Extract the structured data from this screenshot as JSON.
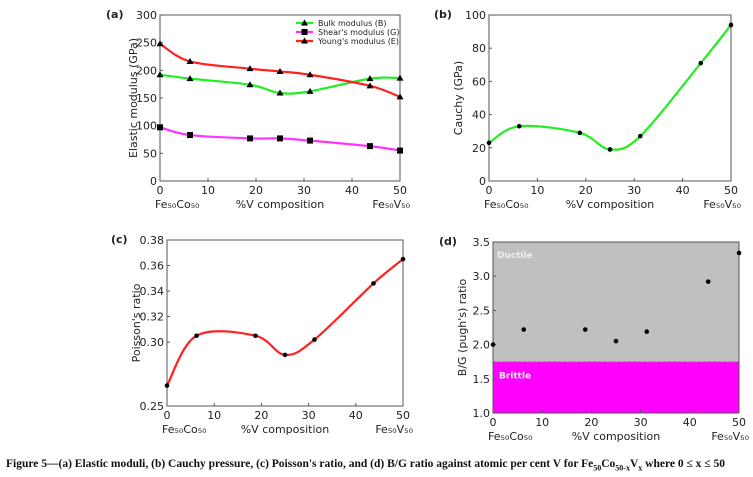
{
  "caption": {
    "text": "Figure 5—(a) Elastic moduli, (b) Cauchy pressure, (c) Poisson's ratio, and (d) B/G ratio against atomic per cent V for Fe",
    "sub1": "50",
    "co": "Co",
    "sub2": "50-x",
    "v": "V",
    "sub3": "x",
    "tail": " where 0 ≤ x ≤ 50"
  },
  "chart_data": [
    {
      "id": "a",
      "panel_label": "(a)",
      "type": "line",
      "xlabel": "%V composition",
      "ylabel": "Elastic modulus (GPa)",
      "x_end_labels": [
        "Fe₅₀Co₅₀",
        "Fe₅₀V₅₀"
      ],
      "xlim": [
        0,
        50
      ],
      "ylim": [
        0,
        300
      ],
      "xticks": [
        0,
        10,
        20,
        30,
        40,
        50
      ],
      "yticks": [
        0,
        50,
        100,
        150,
        200,
        250,
        300
      ],
      "grid": false,
      "legend": "top-right",
      "x": [
        0,
        6.25,
        18.75,
        25,
        31.25,
        43.75,
        50
      ],
      "series": [
        {
          "name": "Bulk modulus (B)",
          "color": "#22ee22",
          "marker": "triangle",
          "values": [
            192,
            185,
            174,
            159,
            162,
            185,
            186
          ]
        },
        {
          "name": "Shear's modulus (G)",
          "color": "#ff33ff",
          "marker": "square",
          "values": [
            97,
            83,
            77,
            77,
            73,
            63,
            55
          ]
        },
        {
          "name": "Young's modulus (E)",
          "color": "#ff2020",
          "marker": "triangle",
          "values": [
            248,
            216,
            203,
            198,
            192,
            172,
            152
          ]
        }
      ]
    },
    {
      "id": "b",
      "panel_label": "(b)",
      "type": "line",
      "xlabel": "%V composition",
      "ylabel": "Cauchy (GPa)",
      "x_end_labels": [
        "Fe₅₀Co₅₀",
        "Fe₅₀V₅₀"
      ],
      "xlim": [
        0,
        50
      ],
      "ylim": [
        0,
        100
      ],
      "xticks": [
        0,
        10,
        20,
        30,
        40,
        50
      ],
      "yticks": [
        0,
        20,
        40,
        60,
        80,
        100
      ],
      "grid": false,
      "x": [
        0,
        6.25,
        18.75,
        25,
        31.25,
        43.75,
        50
      ],
      "series": [
        {
          "color": "#22ee22",
          "marker": "dot",
          "values": [
            23,
            33,
            29,
            19,
            27,
            71,
            94
          ]
        }
      ]
    },
    {
      "id": "c",
      "panel_label": "(c)",
      "type": "line",
      "xlabel": "%V composition",
      "ylabel": "Poisson's ratio",
      "x_end_labels": [
        "Fe₅₀Co₅₀",
        "Fe₅₀V₅₀"
      ],
      "xlim": [
        0,
        50
      ],
      "ylim": [
        0.25,
        0.38
      ],
      "xticks": [
        0,
        10,
        20,
        30,
        40,
        50
      ],
      "yticks": [
        0.25,
        0.3,
        0.32,
        0.34,
        0.36,
        0.38
      ],
      "ytick_labels": [
        "0.25",
        "0.30",
        "0.32",
        "0.34",
        "0.36",
        "0.38"
      ],
      "grid": false,
      "x": [
        0,
        6.25,
        18.75,
        25,
        31.25,
        43.75,
        50
      ],
      "series": [
        {
          "color": "#ff2020",
          "marker": "dot",
          "values": [
            0.266,
            0.305,
            0.305,
            0.29,
            0.302,
            0.346,
            0.365
          ]
        }
      ]
    },
    {
      "id": "d",
      "panel_label": "(d)",
      "type": "scatter",
      "xlabel": "%V composition",
      "ylabel": "B/G (pugh's) ratio",
      "x_end_labels": [
        "Fe₅₀Co₅₀",
        "Fe₅₀V₅₀"
      ],
      "xlim": [
        0,
        50
      ],
      "ylim": [
        1.0,
        3.5
      ],
      "xticks": [
        0,
        10,
        20,
        30,
        40,
        50
      ],
      "yticks": [
        1.0,
        1.5,
        2.0,
        2.5,
        3.0,
        3.5
      ],
      "ytick_labels": [
        "1.0",
        "1.5",
        "2.0",
        "2.5",
        "3.0",
        "3.5"
      ],
      "grid": false,
      "threshold": 1.75,
      "regions": [
        {
          "label": "Ductile",
          "color": "#c0c0c0"
        },
        {
          "label": "Brittle",
          "color": "#ff00ff"
        }
      ],
      "x": [
        0,
        6.25,
        18.75,
        25,
        31.25,
        43.75,
        50
      ],
      "series": [
        {
          "color": "#000000",
          "marker": "dot",
          "values": [
            2.0,
            2.22,
            2.22,
            2.05,
            2.19,
            2.92,
            3.34
          ]
        }
      ]
    }
  ]
}
